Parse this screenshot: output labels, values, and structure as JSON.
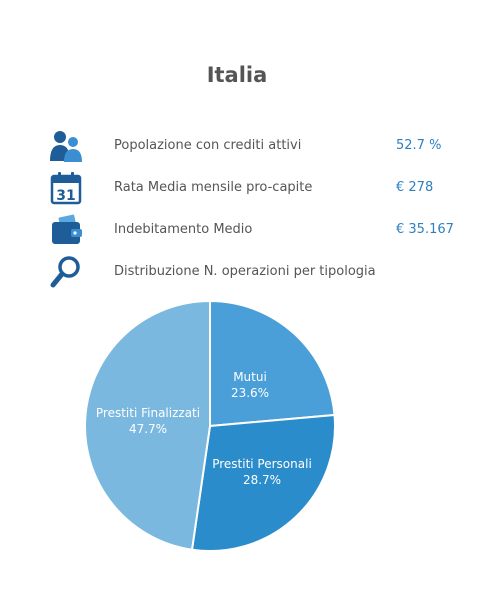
{
  "title": "Italia",
  "stats": [
    {
      "icon": "people-icon",
      "label": "Popolazione con crediti attivi",
      "value": "52.7 %"
    },
    {
      "icon": "calendar-icon",
      "label": "Rata Media mensile pro-capite",
      "value": "€ 278",
      "calendar_day": "31"
    },
    {
      "icon": "wallet-icon",
      "label": "Indebitamento Medio",
      "value": "€ 35.167"
    },
    {
      "icon": "magnifier-icon",
      "label": "Distribuzione N. operazioni per tipologia",
      "value": ""
    }
  ],
  "colors": {
    "accent": "#2f7fc1",
    "text": "#555555",
    "mutui": "#4a9fd8",
    "personali": "#2b8ccc",
    "finalizzati": "#7ab8e0"
  },
  "chart_data": {
    "type": "pie",
    "slices": [
      {
        "name": "Mutui",
        "value": 23.6,
        "label": "23.6%",
        "color": "#4a9fd8"
      },
      {
        "name": "Prestiti Personali",
        "value": 28.7,
        "label": "28.7%",
        "color": "#2b8ccc"
      },
      {
        "name": "Prestiti Finalizzati",
        "value": 47.7,
        "label": "47.7%",
        "color": "#7ab8e0"
      }
    ],
    "start": "12 o'clock",
    "direction": "clockwise"
  }
}
